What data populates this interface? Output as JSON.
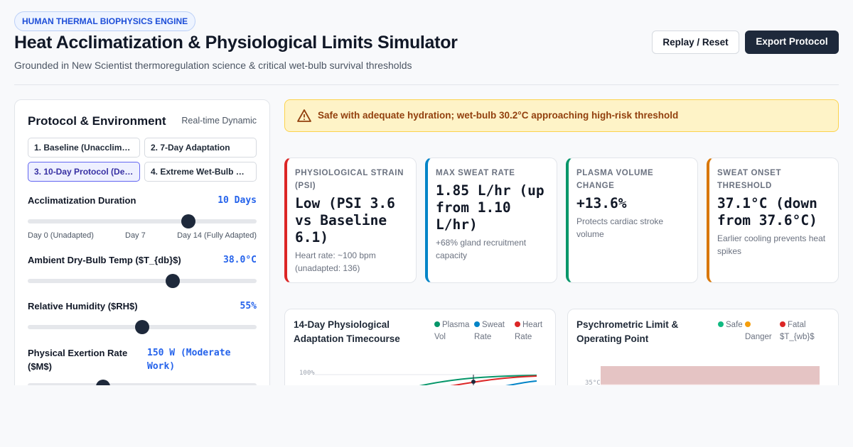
{
  "header": {
    "badge": "HUMAN THERMAL BIOPHYSICS ENGINE",
    "title": "Heat Acclimatization & Physiological Limits Simulator",
    "subtitle": "Grounded in New Scientist thermoregulation science & critical wet-bulb survival thresholds",
    "buttons": [
      "Replay / Reset",
      "Export Protocol"
    ]
  },
  "sidebar": {
    "title": "Protocol & Environment",
    "mode": "Real-time Dynamic",
    "protocols": [
      "1. Baseline (Unacclim…",
      "2. 7-Day Adaptation",
      "3. 10-Day Protocol (De…",
      "4. Extreme Wet-Bulb …"
    ],
    "controls": [
      {
        "label": "Acclimatization Duration",
        "value": "10 Days",
        "scale": [
          "Day 0 (Unadapted)",
          "Day 7",
          "Day 14 (Fully Adapted)"
        ]
      },
      {
        "label": "Ambient Dry-Bulb Temp ($T_{db}$)",
        "value": "38.0°C"
      },
      {
        "label": "Relative Humidity ($RH$)",
        "value": "55%"
      },
      {
        "label": "Physical Exertion Rate ($M$)",
        "value": "150 W (Moderate Work)"
      }
    ]
  },
  "alert": "Safe with adequate hydration; wet-bulb 30.2°C approaching high-risk threshold",
  "metrics": [
    {
      "label": "PHYSIOLOGICAL STRAIN (PSI)",
      "value": "Low (PSI 3.6 vs Baseline 6.1)",
      "note": "Heart rate: ~100 bpm (unadapted: 136)"
    },
    {
      "label": "MAX SWEAT RATE",
      "value": "1.85 L/hr (up from 1.10 L/hr)",
      "note": "+68% gland recruitment capacity"
    },
    {
      "label": "PLASMA VOLUME CHANGE",
      "value": "+13.6%",
      "note": "Protects cardiac stroke volume"
    },
    {
      "label": "SWEAT ONSET THRESHOLD",
      "value": "37.1°C (down from 37.6°C)",
      "note": "Earlier cooling prevents heat spikes"
    }
  ],
  "charts": [
    {
      "title": "14-Day Physiological Adaptation Timecourse",
      "legend": [
        "Plasma Vol",
        "Sweat Rate",
        "Heart Rate"
      ],
      "tick": "100%"
    },
    {
      "title": "Psychrometric Limit & Operating Point",
      "legend": [
        "Safe",
        "Danger",
        "Fatal $T_{wb}$"
      ],
      "tick": "35°C"
    }
  ]
}
